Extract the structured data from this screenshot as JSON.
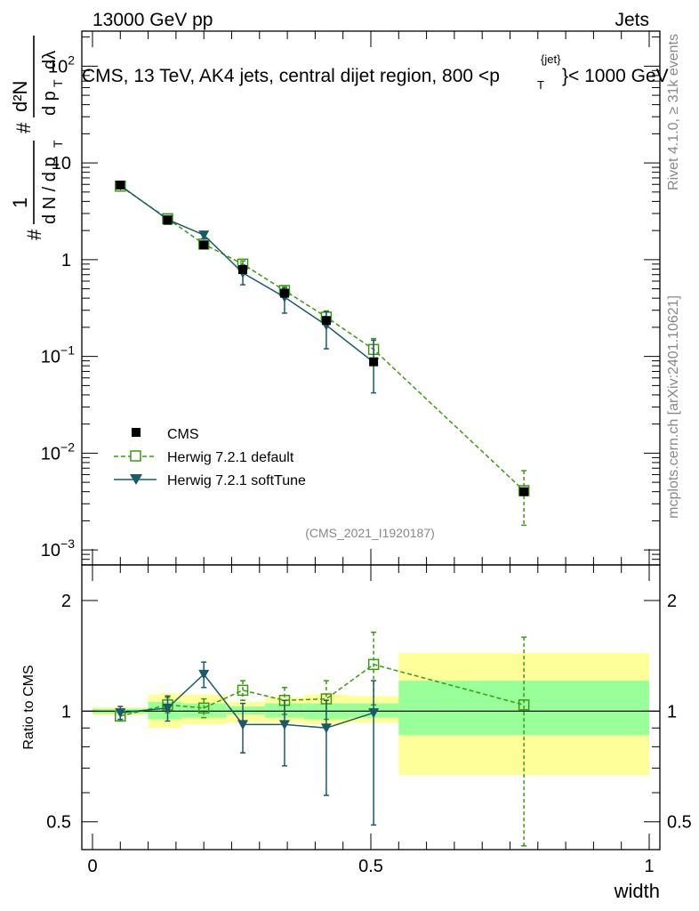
{
  "header": {
    "left": "13000 GeV pp",
    "right": "Jets"
  },
  "side_labels": {
    "rivet": "Rivet 4.1.0, ≥ 31k events",
    "mcplots": "mcplots.cern.ch [arXiv:2401.10621]"
  },
  "colors": {
    "cms": "#000000",
    "herwig_default": "#3a9a0f",
    "herwig_softtune": "#1a5a6a",
    "band_inner": "#99ff99",
    "band_outer": "#ffff99"
  },
  "chart_data": [
    {
      "type": "line",
      "title": "CMS, 13 TeV, AK4 jets, central dijet region, 800 <p_T^{jet}< 1000 GeV",
      "title_parts": [
        "CMS, 13 TeV, AK4 jets, central dijet region, 800 <p",
        "T",
        "{jet}",
        "}< 1000 GeV"
      ],
      "ylabel": "1/(dN/dp_T) # d²N/(dp_T dλ)",
      "ylabel_parts": {
        "num_left": "#",
        "one": "1",
        "den_left": "d N / d p",
        "sub": "T",
        "num_right": "d²N",
        "hash": "#",
        "den_right": "d p",
        "den_right_tail": "dλ"
      },
      "yscale": "log",
      "ylim": [
        0.0007,
        230
      ],
      "xlim": [
        0,
        1
      ],
      "y_ticks": [
        {
          "value": 100,
          "label_base": "10",
          "label_exp": "2"
        },
        {
          "value": 10,
          "label_base": "10",
          "label_exp": ""
        },
        {
          "value": 1,
          "label_base": "1",
          "label_exp": ""
        },
        {
          "value": 0.1,
          "label_base": "10",
          "label_exp": "−1"
        },
        {
          "value": 0.01,
          "label_base": "10",
          "label_exp": "−2"
        },
        {
          "value": 0.001,
          "label_base": "10",
          "label_exp": "−3"
        }
      ],
      "watermark": "(CMS_2021_I1920187)",
      "legend_position": "lower-left",
      "series": [
        {
          "name": "CMS",
          "style": "marker-square",
          "x": [
            0.05,
            0.135,
            0.2,
            0.27,
            0.345,
            0.42,
            0.505,
            0.775
          ],
          "y": [
            5.9,
            2.55,
            1.42,
            0.79,
            0.45,
            0.235,
            0.088,
            0.004
          ]
        },
        {
          "name": "Herwig 7.2.1 default",
          "style": "open-square-dashed",
          "x": [
            0.05,
            0.135,
            0.2,
            0.27,
            0.345,
            0.42,
            0.505,
            0.775
          ],
          "y": [
            5.75,
            2.65,
            1.45,
            0.9,
            0.48,
            0.255,
            0.118,
            0.0041
          ],
          "err_up": [
            0.2,
            0.12,
            0.1,
            0.07,
            0.05,
            0.04,
            0.035,
            0.0025
          ],
          "err_down": [
            0.2,
            0.12,
            0.1,
            0.07,
            0.05,
            0.04,
            0.035,
            0.0023
          ]
        },
        {
          "name": "Herwig 7.2.1 softTune",
          "style": "filled-triangle-solid",
          "x": [
            0.05,
            0.135,
            0.2,
            0.27,
            0.345,
            0.42,
            0.505
          ],
          "y": [
            5.85,
            2.6,
            1.8,
            0.73,
            0.41,
            0.21,
            0.087
          ],
          "err_up": [
            0.25,
            0.15,
            0.15,
            0.15,
            0.1,
            0.08,
            0.06
          ],
          "err_down": [
            0.25,
            0.15,
            0.15,
            0.18,
            0.13,
            0.09,
            0.045
          ]
        }
      ]
    },
    {
      "type": "line",
      "ylabel": "Ratio to CMS",
      "xlabel": "width",
      "yscale": "log",
      "ylim": [
        0.42,
        2.5
      ],
      "xlim": [
        0,
        1
      ],
      "y_ticks": [
        {
          "value": 2,
          "label": "2"
        },
        {
          "value": 1,
          "label": "1"
        },
        {
          "value": 0.5,
          "label": "0.5"
        }
      ],
      "x_ticks": [
        {
          "value": 0,
          "label": "0"
        },
        {
          "value": 0.5,
          "label": "0.5"
        },
        {
          "value": 1,
          "label": "1"
        }
      ],
      "bands": [
        {
          "x0": 0.0,
          "x1": 0.1,
          "inner": [
            0.985,
            1.015
          ],
          "outer": [
            0.975,
            1.025
          ]
        },
        {
          "x0": 0.1,
          "x1": 0.12,
          "inner": [
            0.95,
            1.06
          ],
          "outer": [
            0.9,
            1.11
          ]
        },
        {
          "x0": 0.12,
          "x1": 0.16,
          "inner": [
            0.95,
            1.06
          ],
          "outer": [
            0.9,
            1.12
          ]
        },
        {
          "x0": 0.16,
          "x1": 0.24,
          "inner": [
            0.96,
            1.05
          ],
          "outer": [
            0.92,
            1.11
          ]
        },
        {
          "x0": 0.24,
          "x1": 0.31,
          "inner": [
            0.98,
            1.03
          ],
          "outer": [
            0.93,
            1.06
          ]
        },
        {
          "x0": 0.31,
          "x1": 0.38,
          "inner": [
            0.96,
            1.05
          ],
          "outer": [
            0.93,
            1.09
          ]
        },
        {
          "x0": 0.38,
          "x1": 0.46,
          "inner": [
            0.95,
            1.05
          ],
          "outer": [
            0.92,
            1.11
          ]
        },
        {
          "x0": 0.46,
          "x1": 0.55,
          "inner": [
            0.96,
            1.05
          ],
          "outer": [
            0.93,
            1.1
          ]
        },
        {
          "x0": 0.55,
          "x1": 1.0,
          "inner": [
            0.86,
            1.21
          ],
          "outer": [
            0.67,
            1.44
          ]
        }
      ],
      "series": [
        {
          "name": "Herwig 7.2.1 default",
          "style": "open-square-dashed",
          "x": [
            0.05,
            0.135,
            0.2,
            0.27,
            0.345,
            0.42,
            0.505,
            0.775
          ],
          "y": [
            0.97,
            1.04,
            1.02,
            1.14,
            1.07,
            1.08,
            1.34,
            1.04
          ],
          "err_up": [
            0.03,
            0.05,
            0.06,
            0.07,
            0.09,
            0.13,
            0.3,
            0.55
          ],
          "err_down": [
            0.03,
            0.05,
            0.06,
            0.07,
            0.09,
            0.13,
            0.3,
            0.61
          ]
        },
        {
          "name": "Herwig 7.2.1 softTune",
          "style": "filled-triangle-solid",
          "x": [
            0.05,
            0.135,
            0.2,
            0.27,
            0.345,
            0.42,
            0.505
          ],
          "y": [
            0.99,
            1.02,
            1.26,
            0.92,
            0.92,
            0.9,
            0.99
          ],
          "err_up": [
            0.04,
            0.08,
            0.1,
            0.13,
            0.15,
            0.17,
            0.22
          ],
          "err_down": [
            0.04,
            0.08,
            0.1,
            0.15,
            0.21,
            0.31,
            0.5
          ]
        }
      ]
    }
  ]
}
